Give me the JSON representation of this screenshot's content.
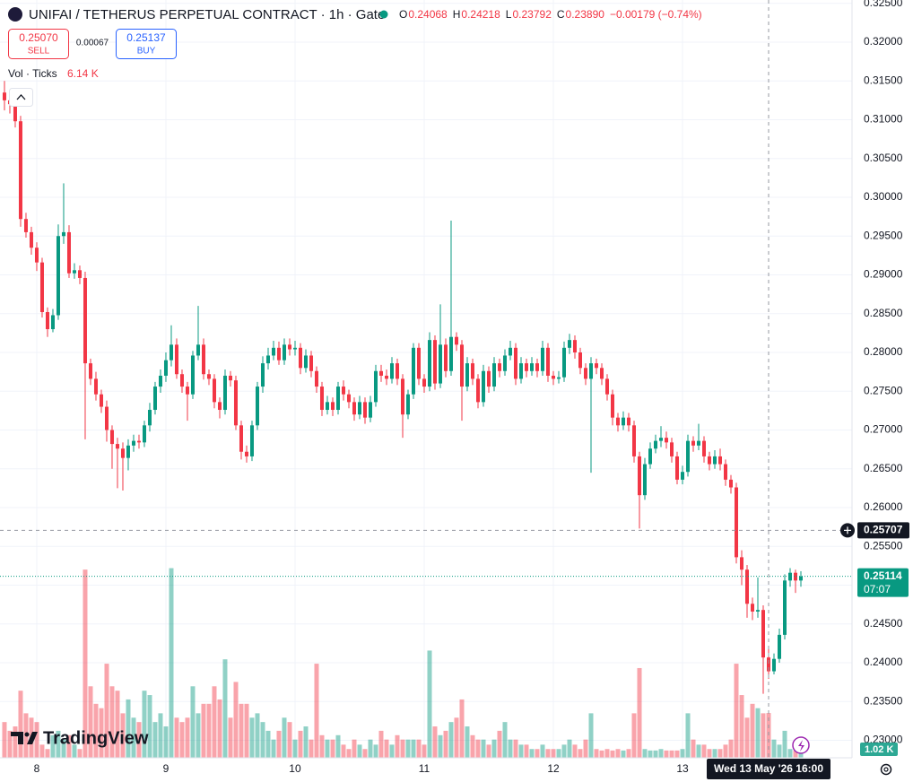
{
  "chart_data": {
    "type": "candlestick",
    "title": "UNIFAI / TETHERUS PERPETUAL CONTRACT · 1h · Gate",
    "legend_ohlc": {
      "labels": [
        "O",
        "H",
        "L",
        "C"
      ],
      "values": [
        0.24068,
        0.24218,
        0.23792,
        {
          "value": 0.2389,
          "label": "0.23890"
        }
      ],
      "change": {
        "value": -0.00179,
        "label": "−0.00179 (−0.74%)"
      }
    },
    "trade": {
      "sell": {
        "value": 0.2507,
        "label": "0.25070"
      },
      "sell_text": "SELL",
      "spread": 0.00067,
      "buy": 0.25137,
      "buy_text": "BUY"
    },
    "volume_legend": {
      "label": "Vol · Ticks",
      "value": {
        "value": 6.14,
        "label": "6.14 K"
      }
    },
    "up_color": "#089981",
    "down_color": "#f23645",
    "open": [
      0.3135,
      0.3125,
      0.312,
      0.3098,
      0.2972,
      0.2955,
      0.2935,
      0.2916,
      0.2852,
      0.283,
      0.2848,
      0.295,
      0.2955,
      0.2902,
      0.2906,
      0.2896,
      0.2786,
      0.2766,
      0.2746,
      0.273,
      0.27,
      0.2682,
      0.2676,
      0.2664,
      0.268,
      0.2686,
      0.2684,
      0.2706,
      0.2726,
      0.2756,
      0.277,
      0.279,
      0.281,
      0.2772,
      0.2756,
      0.2746,
      0.2796,
      0.281,
      0.2772,
      0.2766,
      0.2736,
      0.2726,
      0.277,
      0.2764,
      0.2706,
      0.2672,
      0.2666,
      0.2706,
      0.2756,
      0.2786,
      0.2796,
      0.2806,
      0.279,
      0.281,
      0.2804,
      0.2806,
      0.278,
      0.2796,
      0.2776,
      0.2756,
      0.2726,
      0.2736,
      0.2726,
      0.2756,
      0.2746,
      0.2736,
      0.272,
      0.2736,
      0.2716,
      0.2736,
      0.2776,
      0.277,
      0.2766,
      0.2786,
      0.2766,
      0.272,
      0.2746,
      0.2806,
      0.2766,
      0.2756,
      0.2816,
      0.276,
      0.281,
      0.2776,
      0.282,
      0.281,
      0.2756,
      0.2786,
      0.2766,
      0.2736,
      0.2776,
      0.2756,
      0.2786,
      0.2776,
      0.2796,
      0.2806,
      0.2766,
      0.2786,
      0.2776,
      0.2786,
      0.2776,
      0.2806,
      0.277,
      0.2766,
      0.2768,
      0.2806,
      0.2816,
      0.28,
      0.278,
      0.2766,
      0.2786,
      0.278,
      0.2766,
      0.2746,
      0.2716,
      0.2706,
      0.2716,
      0.2706,
      0.2666,
      0.2616,
      0.2656,
      0.2676,
      0.2686,
      0.269,
      0.2684,
      0.2666,
      0.2636,
      0.2646,
      0.2686,
      0.268,
      0.2686,
      0.2666,
      0.2656,
      0.2666,
      0.2656,
      0.2636,
      0.2626,
      0.2536,
      0.252,
      0.2476,
      0.2466,
      0.2468,
      0.24068,
      0.2389,
      0.2405,
      0.2436,
      0.2506,
      0.2516,
      0.2506
    ],
    "high": [
      0.315,
      0.3132,
      0.3126,
      0.3105,
      0.298,
      0.2962,
      0.2942,
      0.2922,
      0.2858,
      0.2856,
      0.2965,
      0.3018,
      0.2964,
      0.2915,
      0.2912,
      0.2904,
      0.2792,
      0.2775,
      0.2752,
      0.2738,
      0.2706,
      0.269,
      0.2684,
      0.2688,
      0.2694,
      0.2694,
      0.2712,
      0.2735,
      0.2762,
      0.2778,
      0.28,
      0.2835,
      0.2818,
      0.2778,
      0.2762,
      0.2802,
      0.286,
      0.2818,
      0.2778,
      0.2772,
      0.2742,
      0.2778,
      0.2776,
      0.277,
      0.2712,
      0.268,
      0.2712,
      0.2762,
      0.2795,
      0.2806,
      0.2815,
      0.2814,
      0.2818,
      0.2818,
      0.2815,
      0.2812,
      0.2804,
      0.2802,
      0.2782,
      0.2762,
      0.2744,
      0.2742,
      0.2762,
      0.2764,
      0.2752,
      0.2742,
      0.2744,
      0.2742,
      0.2744,
      0.2784,
      0.2784,
      0.2778,
      0.2794,
      0.2792,
      0.2772,
      0.2752,
      0.2812,
      0.2812,
      0.2772,
      0.2826,
      0.2822,
      0.2862,
      0.2818,
      0.297,
      0.2826,
      0.2816,
      0.2794,
      0.2792,
      0.2772,
      0.2784,
      0.2782,
      0.2794,
      0.2792,
      0.2804,
      0.2815,
      0.2812,
      0.2794,
      0.2792,
      0.2794,
      0.2792,
      0.2815,
      0.2812,
      0.2776,
      0.2776,
      0.2814,
      0.2824,
      0.2822,
      0.2806,
      0.2786,
      0.2794,
      0.2792,
      0.2786,
      0.2772,
      0.2752,
      0.2722,
      0.2724,
      0.2722,
      0.2712,
      0.2672,
      0.2664,
      0.2684,
      0.2694,
      0.2705,
      0.2698,
      0.269,
      0.2672,
      0.2654,
      0.2694,
      0.2692,
      0.2708,
      0.2692,
      0.2672,
      0.2674,
      0.2676,
      0.2662,
      0.2642,
      0.2632,
      0.2545,
      0.2526,
      0.2484,
      0.251,
      0.2474,
      0.24218,
      0.2412,
      0.2444,
      0.2514,
      0.2522,
      0.252,
      0.2518
    ],
    "low": [
      0.3112,
      0.3108,
      0.309,
      0.2962,
      0.2948,
      0.2926,
      0.2905,
      0.2845,
      0.282,
      0.2826,
      0.2842,
      0.294,
      0.2896,
      0.2895,
      0.2888,
      0.2688,
      0.2758,
      0.2738,
      0.2722,
      0.2685,
      0.265,
      0.2625,
      0.2622,
      0.2648,
      0.2672,
      0.2676,
      0.2678,
      0.2698,
      0.272,
      0.2748,
      0.2762,
      0.2782,
      0.2766,
      0.2748,
      0.2712,
      0.274,
      0.279,
      0.2765,
      0.2758,
      0.2728,
      0.2715,
      0.272,
      0.2756,
      0.27,
      0.2662,
      0.2658,
      0.266,
      0.27,
      0.2748,
      0.2778,
      0.279,
      0.2784,
      0.2784,
      0.2796,
      0.2796,
      0.2772,
      0.2774,
      0.2768,
      0.2748,
      0.2718,
      0.272,
      0.2718,
      0.272,
      0.2738,
      0.2728,
      0.2712,
      0.2714,
      0.2708,
      0.271,
      0.273,
      0.2762,
      0.2758,
      0.276,
      0.2758,
      0.269,
      0.2714,
      0.274,
      0.2758,
      0.2748,
      0.275,
      0.2752,
      0.2754,
      0.2768,
      0.277,
      0.2802,
      0.2712,
      0.275,
      0.2758,
      0.2728,
      0.273,
      0.2748,
      0.275,
      0.2768,
      0.277,
      0.279,
      0.2758,
      0.276,
      0.2768,
      0.277,
      0.2768,
      0.277,
      0.2762,
      0.2758,
      0.276,
      0.2762,
      0.2798,
      0.2792,
      0.2772,
      0.2758,
      0.2645,
      0.2772,
      0.2758,
      0.2738,
      0.2706,
      0.2698,
      0.27,
      0.2698,
      0.2658,
      0.2573,
      0.261,
      0.265,
      0.267,
      0.2678,
      0.2676,
      0.2658,
      0.263,
      0.263,
      0.264,
      0.2672,
      0.2674,
      0.2658,
      0.2648,
      0.265,
      0.2648,
      0.2628,
      0.2618,
      0.2528,
      0.25,
      0.2458,
      0.2455,
      0.2458,
      0.236,
      0.23792,
      0.2385,
      0.24,
      0.243,
      0.2498,
      0.249,
      0.2498
    ],
    "close": [
      0.3125,
      0.312,
      0.3098,
      0.2972,
      0.2955,
      0.2935,
      0.2916,
      0.2852,
      0.283,
      0.2848,
      0.295,
      0.2955,
      0.2902,
      0.2906,
      0.2896,
      0.2786,
      0.2766,
      0.2746,
      0.273,
      0.27,
      0.2682,
      0.2676,
      0.2664,
      0.268,
      0.2686,
      0.2684,
      0.2706,
      0.2726,
      0.2756,
      0.277,
      0.279,
      0.281,
      0.2772,
      0.2756,
      0.2746,
      0.2796,
      0.281,
      0.2772,
      0.2766,
      0.2736,
      0.2726,
      0.277,
      0.2764,
      0.2706,
      0.2672,
      0.2666,
      0.2706,
      0.2756,
      0.2786,
      0.2796,
      0.2806,
      0.279,
      0.281,
      0.2804,
      0.2806,
      0.278,
      0.2796,
      0.2776,
      0.2756,
      0.2726,
      0.2736,
      0.2726,
      0.2756,
      0.2746,
      0.2736,
      0.272,
      0.2736,
      0.2716,
      0.2736,
      0.2776,
      0.277,
      0.2766,
      0.2786,
      0.2766,
      0.272,
      0.2746,
      0.2806,
      0.2766,
      0.2756,
      0.2816,
      0.276,
      0.281,
      0.2776,
      0.282,
      0.281,
      0.2756,
      0.2786,
      0.2766,
      0.2736,
      0.2776,
      0.2756,
      0.2786,
      0.2776,
      0.2796,
      0.2806,
      0.2766,
      0.2786,
      0.2776,
      0.2786,
      0.2776,
      0.2806,
      0.277,
      0.2766,
      0.2768,
      0.2806,
      0.2816,
      0.28,
      0.278,
      0.2766,
      0.2786,
      0.278,
      0.2766,
      0.2746,
      0.2716,
      0.2706,
      0.2716,
      0.2706,
      0.2666,
      0.2616,
      0.2656,
      0.2676,
      0.2686,
      0.269,
      0.2684,
      0.2666,
      0.2636,
      0.2646,
      0.2686,
      0.268,
      0.2686,
      0.2666,
      0.2656,
      0.2666,
      0.2656,
      0.2636,
      0.2626,
      0.2536,
      0.252,
      0.2476,
      0.2466,
      0.2468,
      0.24068,
      0.2389,
      0.2405,
      0.2436,
      0.2506,
      0.2516,
      0.2506,
      0.25114
    ],
    "volume": [
      4.9,
      3.7,
      4.3,
      9.2,
      6.1,
      5.5,
      4.9,
      1.8,
      1.2,
      3.1,
      3.7,
      2.5,
      3.1,
      1.8,
      1.2,
      25.8,
      9.8,
      7.4,
      6.8,
      12.9,
      9.8,
      9.2,
      6.1,
      8.0,
      5.5,
      4.9,
      9.2,
      8.6,
      4.9,
      6.1,
      4.3,
      26.0,
      5.5,
      4.9,
      5.5,
      9.8,
      6.1,
      7.4,
      7.4,
      9.8,
      8.0,
      13.5,
      5.5,
      10.4,
      7.4,
      7.4,
      5.5,
      6.1,
      4.9,
      3.7,
      2.5,
      3.7,
      5.5,
      4.9,
      2.5,
      3.7,
      4.3,
      2.5,
      12.9,
      3.1,
      2.5,
      2.5,
      3.1,
      1.8,
      1.2,
      2.5,
      1.8,
      1.2,
      2.5,
      1.8,
      3.7,
      2.5,
      1.8,
      3.1,
      2.5,
      2.5,
      2.5,
      2.5,
      1.8,
      14.7,
      4.3,
      3.1,
      3.7,
      4.9,
      5.5,
      8.0,
      4.3,
      3.1,
      2.5,
      2.5,
      1.8,
      2.5,
      3.7,
      4.9,
      2.5,
      2.5,
      1.8,
      1.8,
      1.2,
      1.2,
      1.8,
      1.2,
      1.2,
      1.2,
      1.8,
      2.5,
      1.8,
      1.2,
      2.5,
      6.1,
      1.2,
      1.0,
      1.2,
      1.0,
      1.2,
      1.0,
      1.2,
      6.1,
      12.3,
      1.2,
      1.0,
      1.0,
      1.2,
      1.0,
      1.0,
      1.0,
      1.2,
      6.1,
      2.5,
      1.8,
      1.8,
      1.2,
      1.2,
      1.2,
      1.8,
      2.5,
      12.9,
      8.6,
      5.5,
      7.4,
      6.8,
      6.1,
      6.14,
      2.5,
      1.8,
      3.7,
      1.2,
      1.0,
      1.02
    ],
    "volume_lim": [
      0,
      30
    ],
    "last_volume": {
      "value": 1.02,
      "label": "1.02 K"
    },
    "countdown": "07:07",
    "crosshair": {
      "index": 142,
      "price": 0.25707,
      "time_label": "Wed 13 May '26 16:00"
    },
    "xlim": [
      -0.83,
      157.5
    ],
    "xticks": [
      {
        "value": 6,
        "label": "8"
      },
      {
        "value": 30,
        "label": "9"
      },
      {
        "value": 54,
        "label": "10"
      },
      {
        "value": 78,
        "label": "11"
      },
      {
        "value": 102,
        "label": "12"
      },
      {
        "value": 126,
        "label": "13"
      }
    ],
    "ylim": [
      0.22775,
      0.32543
    ],
    "yticks": [
      {
        "value": 0.23,
        "label": "0.23000"
      },
      {
        "value": 0.235,
        "label": "0.23500"
      },
      {
        "value": 0.24,
        "label": "0.24000"
      },
      {
        "value": 0.245,
        "label": "0.24500"
      },
      {
        "value": 0.25,
        "label": "0.25000"
      },
      {
        "value": 0.255,
        "label": "0.25500"
      },
      {
        "value": 0.26,
        "label": "0.26000"
      },
      {
        "value": 0.265,
        "label": "0.26500"
      },
      {
        "value": 0.27,
        "label": "0.27000"
      },
      {
        "value": 0.275,
        "label": "0.27500"
      },
      {
        "value": 0.28,
        "label": "0.28000"
      },
      {
        "value": 0.285,
        "label": "0.28500"
      },
      {
        "value": 0.29,
        "label": "0.29000"
      },
      {
        "value": 0.295,
        "label": "0.29500"
      },
      {
        "value": 0.3,
        "label": "0.30000"
      },
      {
        "value": 0.305,
        "label": "0.30500"
      },
      {
        "value": 0.31,
        "label": "0.31000"
      },
      {
        "value": 0.315,
        "label": "0.31500"
      },
      {
        "value": 0.32,
        "label": "0.32000"
      },
      {
        "value": 0.325,
        "label": "0.32500"
      }
    ],
    "grid": true,
    "logo": "TradingView"
  }
}
